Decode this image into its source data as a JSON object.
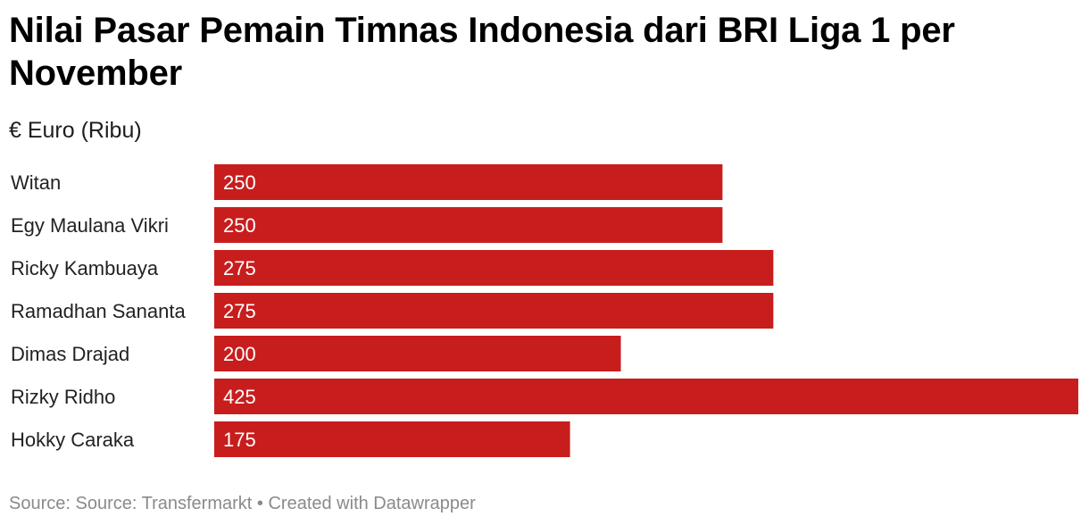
{
  "chart_data": {
    "type": "bar",
    "orientation": "horizontal",
    "title": "Nilai Pasar Pemain Timnas Indonesia dari BRI Liga 1 per November",
    "subtitle": "€ Euro (Ribu)",
    "categories": [
      "Witan",
      "Egy Maulana Vikri",
      "Ricky Kambuaya",
      "Ramadhan Sananta",
      "Dimas Drajad",
      "Rizky Ridho",
      "Hokky Caraka"
    ],
    "values": [
      250,
      250,
      275,
      275,
      200,
      425,
      175
    ],
    "xlim": [
      0,
      425
    ],
    "grid": false,
    "bar_color": "#c81d1d",
    "value_label_color": "#ffffff"
  },
  "footer": {
    "source": "Source: Source: Transfermarkt",
    "separator": "•",
    "credit": "Created with Datawrapper"
  }
}
